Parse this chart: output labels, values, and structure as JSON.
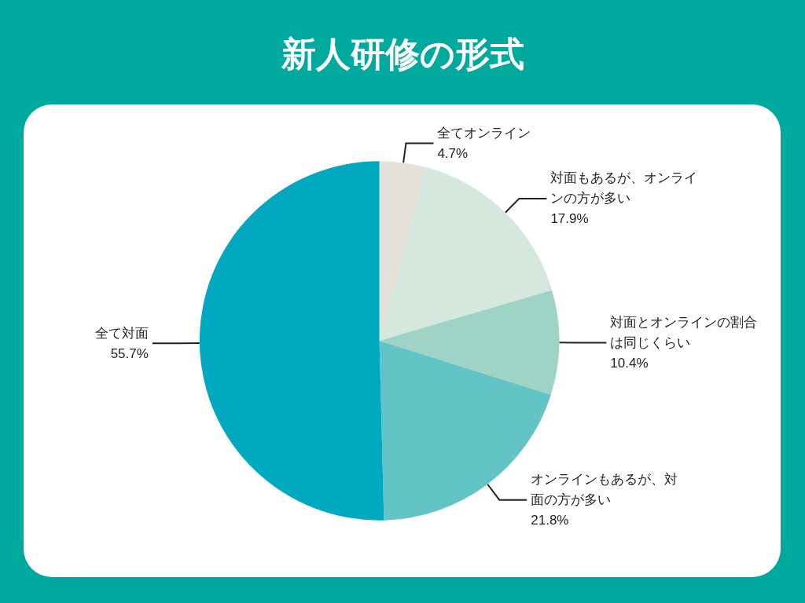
{
  "chart_data": {
    "type": "pie",
    "title": "新人研修の形式",
    "categories": [
      "全てオンライン",
      "対面もあるが、オンラインの方が多い",
      "対面とオンラインの割合は同じくらい",
      "オンラインもあるが、対面の方が多い",
      "全て対面"
    ],
    "values": [
      4.7,
      17.9,
      10.4,
      21.8,
      55.7
    ],
    "value_labels": [
      "4.7%",
      "17.9%",
      "10.4%",
      "21.8%",
      "55.7%"
    ],
    "colors": [
      "#e3e1d8",
      "#d5e8de",
      "#9fd3c5",
      "#62c4c4",
      "#00a8c0"
    ],
    "legend": false
  }
}
